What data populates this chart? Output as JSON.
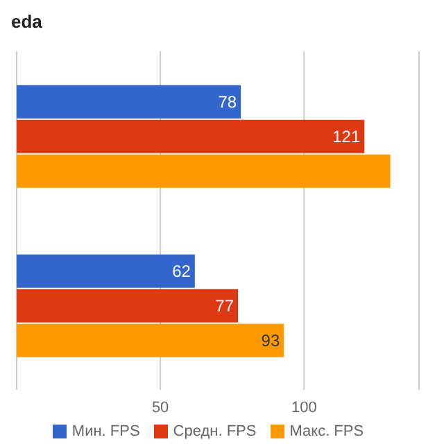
{
  "chart_data": {
    "type": "bar",
    "orientation": "horizontal",
    "title": "eda",
    "categories": [
      null,
      null
    ],
    "series": [
      {
        "name": "Мин. FPS",
        "color": "#3366cc",
        "values": [
          78,
          62
        ],
        "value_labels": [
          "78",
          "62"
        ]
      },
      {
        "name": "Средн. FPS",
        "color": "#dc3912",
        "values": [
          121,
          77
        ],
        "value_labels": [
          "121",
          "77"
        ]
      },
      {
        "name": "Макс. FPS",
        "color": "#ff9900",
        "values": [
          130,
          93
        ],
        "value_labels": [
          null,
          "93"
        ]
      }
    ],
    "xlim": [
      0,
      140
    ],
    "xticks": [
      50,
      100
    ],
    "grid": "x",
    "legend": "bottom"
  }
}
